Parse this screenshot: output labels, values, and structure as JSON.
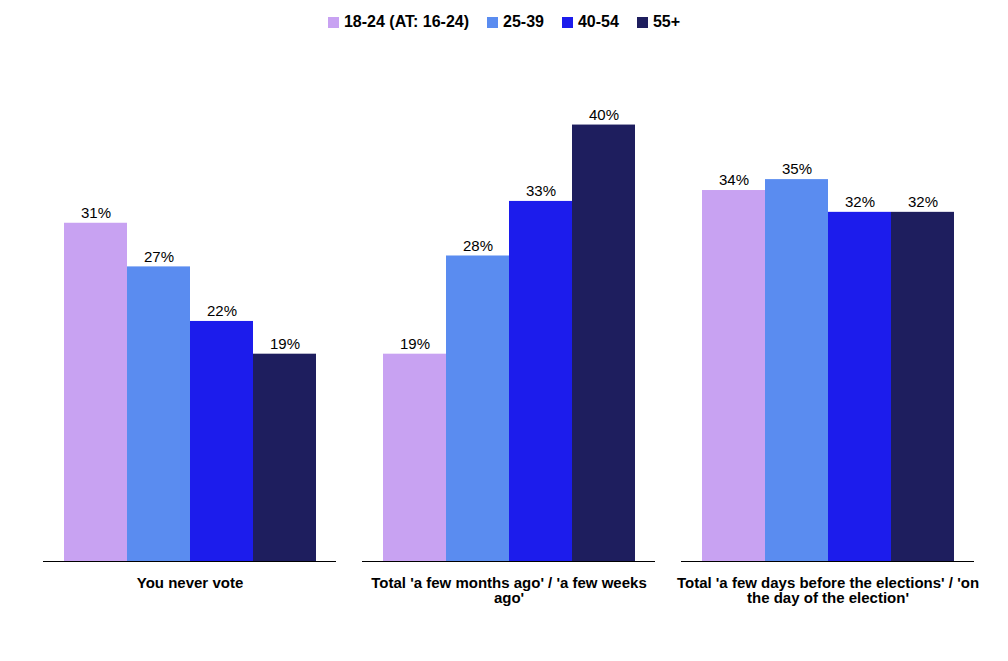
{
  "chart_data": {
    "type": "bar",
    "categories": [
      "You never vote",
      "Total 'a few months ago' / 'a few weeks ago'",
      "Total 'a few days before the elections' / 'on the day of the election'"
    ],
    "series": [
      {
        "name": "18-24 (AT: 16-24)",
        "color": "#c8a2f2",
        "values": [
          31,
          19,
          34
        ],
        "value_labels": [
          "31%",
          "19%",
          "34%"
        ]
      },
      {
        "name": "25-39",
        "color": "#5a8cf0",
        "values": [
          27,
          28,
          35
        ],
        "value_labels": [
          "27%",
          "28%",
          "35%"
        ]
      },
      {
        "name": "40-54",
        "color": "#1c1cec",
        "values": [
          22,
          33,
          32
        ],
        "value_labels": [
          "22%",
          "33%",
          "32%"
        ]
      },
      {
        "name": "55+",
        "color": "#1e1e5e",
        "values": [
          19,
          40,
          32
        ],
        "value_labels": [
          "19%",
          "40%",
          "32%"
        ]
      }
    ],
    "ylim": [
      0,
      45
    ],
    "data_labels": true,
    "legend": "top",
    "tick_labels": "x"
  }
}
